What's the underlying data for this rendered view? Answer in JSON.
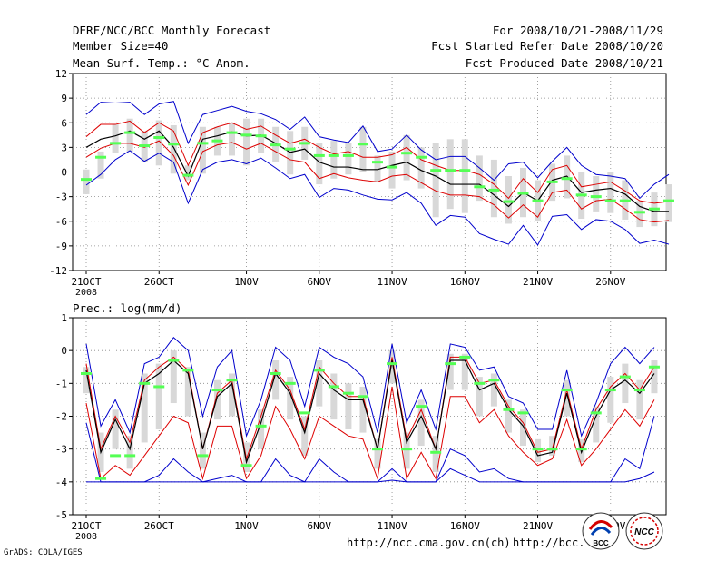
{
  "header": {
    "title": "DERF/NCC/BCC Monthly Forecast",
    "member_size": "Member Size=40",
    "variable": "Mean Surf. Temp.: °C Anom.",
    "period": "For 2008/10/21-2008/11/29",
    "started": "Fcst Started Refer Date 2008/10/20",
    "produced": "Fcst Produced Date 2008/10/21"
  },
  "footer": {
    "url1": "http://ncc.cma.gov.cn(ch)",
    "url2": "http://bcc.",
    "credit": "GrADS: COLA/IGES",
    "logo_bcc": "BCC",
    "logo_ncc": "NCC"
  },
  "colors": {
    "envelope": "#0000cc",
    "spread": "#dd0000",
    "mean": "#000000",
    "member": "#54ff54",
    "bar": "#d8d8d8",
    "grid": "#888888"
  },
  "chart_data": [
    {
      "type": "line",
      "title": "Mean Surf. Temp.: °C Anom.",
      "ylabel": "",
      "ylim": [
        -12,
        12
      ],
      "yticks": [
        12,
        9,
        6,
        3,
        0,
        -3,
        -6,
        -9,
        -12
      ],
      "xlabels": [
        {
          "day": 0,
          "text": "21OCT",
          "sub": "2008"
        },
        {
          "day": 5,
          "text": "26OCT"
        },
        {
          "day": 11,
          "text": "1NOV"
        },
        {
          "day": 16,
          "text": "6NOV"
        },
        {
          "day": 21,
          "text": "11NOV"
        },
        {
          "day": 26,
          "text": "16NOV"
        },
        {
          "day": 31,
          "text": "21NOV"
        },
        {
          "day": 36,
          "text": "26NOV"
        }
      ],
      "mean": [
        3,
        4,
        4.4,
        5,
        4,
        5,
        3,
        -0.5,
        4,
        4.4,
        4.9,
        4.4,
        4.5,
        3.5,
        2.4,
        2.8,
        1.2,
        0.6,
        0.6,
        0.3,
        0.3,
        0.8,
        1.2,
        0.2,
        -0.5,
        -1.5,
        -1.5,
        -1.5,
        -2.8,
        -4.2,
        -2.5,
        -3.5,
        -1,
        -0.5,
        -2.5,
        -2.2,
        -2,
        -2.7,
        -4.2,
        -4.8,
        -4.8
      ],
      "upper": [
        7,
        8.5,
        8.4,
        8.5,
        7,
        8.3,
        8.6,
        3.5,
        7,
        7.5,
        8,
        7.4,
        7.1,
        6.4,
        5.2,
        6.7,
        4.3,
        3.9,
        3.6,
        5.6,
        2.5,
        2.8,
        4.5,
        2.7,
        1.5,
        1.9,
        1.9,
        0.5,
        -1,
        1,
        1.2,
        -0.7,
        1.3,
        3,
        0.8,
        -0.3,
        -0.5,
        -0.8,
        -3.2,
        -1.5,
        -0.3
      ],
      "red_hi": [
        4.3,
        5.8,
        5.8,
        6.2,
        4.8,
        6,
        5,
        0.8,
        4.8,
        5.5,
        6,
        5.2,
        5.6,
        4.5,
        3.5,
        4,
        3,
        2.2,
        2.5,
        1.8,
        1.8,
        2.1,
        3,
        1.5,
        0.8,
        0.2,
        0.2,
        -0.3,
        -1.5,
        -3.2,
        -0.8,
        -2.5,
        0.3,
        0.8,
        -1.8,
        -1.5,
        -1.2,
        -2.3,
        -3.5,
        -3.8,
        -3.6
      ],
      "red_lo": [
        1.8,
        2.9,
        3.5,
        3.5,
        3,
        3.8,
        2,
        -1.6,
        2.5,
        3.3,
        3.6,
        2.8,
        3.5,
        2.5,
        1.5,
        1.2,
        -0.8,
        -0.2,
        -0.7,
        -1,
        -1.2,
        -0.5,
        -0.3,
        -1.3,
        -2.3,
        -2.8,
        -2.8,
        -3,
        -4,
        -5.6,
        -4,
        -5.5,
        -2.5,
        -2.2,
        -4.5,
        -3.5,
        -3.3,
        -4.5,
        -5.8,
        -6.1,
        -5.9
      ],
      "lower": [
        -1.6,
        -0.3,
        1.5,
        2.6,
        1.3,
        2.3,
        1.2,
        -3.8,
        0.3,
        1.2,
        1.5,
        1,
        1.7,
        0.5,
        -0.8,
        -0.3,
        -3.1,
        -2,
        -2.2,
        -2.8,
        -3.3,
        -3.4,
        -2.5,
        -3.8,
        -6.5,
        -5.3,
        -5.5,
        -7.5,
        -8.2,
        -8.8,
        -6.5,
        -8.9,
        -5.4,
        -5.2,
        -7,
        -5.8,
        -6,
        -7,
        -8.7,
        -8.3,
        -8.8
      ],
      "member_mark": [
        -0.9,
        1.8,
        3.5,
        4.8,
        3.2,
        4.2,
        3.4,
        -0.4,
        3.5,
        3.8,
        4.8,
        4.5,
        4.4,
        3.3,
        2.8,
        3.5,
        2,
        2,
        2,
        3.4,
        1.2,
        0.6,
        2.3,
        1.8,
        0.2,
        0.2,
        0.2,
        -1.8,
        -2.2,
        -3.6,
        -2.6,
        -3.5,
        -1.2,
        -0.8,
        -2.8,
        -3,
        -3.5,
        -3.5,
        -4.9,
        -4.5,
        -3.5
      ],
      "bar_top": [
        0.3,
        2.5,
        5.8,
        6.5,
        5,
        6.3,
        5.7,
        0.8,
        5.5,
        5.5,
        6,
        6.5,
        6.5,
        5.5,
        5,
        5.5,
        3.5,
        3.8,
        3.5,
        5.5,
        2,
        2.5,
        4.5,
        3,
        3.5,
        4,
        4,
        2,
        1.5,
        -0.5,
        0.5,
        -1,
        1,
        2,
        0,
        -0.5,
        0,
        -1,
        -3.5,
        -2.5,
        -1.5
      ],
      "bar_bot": [
        -2.7,
        -0.8,
        2.3,
        2.5,
        1.2,
        0.8,
        -0.2,
        -1,
        -0.2,
        2,
        2,
        0.8,
        2.3,
        1.2,
        -0.3,
        1.5,
        -1.5,
        -0.8,
        -0.3,
        0,
        -1.2,
        -2,
        -1,
        -2,
        -5.5,
        -4.5,
        -5,
        -3.5,
        -5.5,
        -6.3,
        -5.5,
        -6,
        -3.5,
        -3.2,
        -5.7,
        -4.8,
        -5,
        -5.8,
        -6.7,
        -6.6,
        -6.1
      ]
    },
    {
      "type": "line",
      "title": "Prec.: log(mm/d)",
      "ylabel": "",
      "ylim": [
        -5,
        1
      ],
      "yticks": [
        1,
        0,
        -1,
        -2,
        -3,
        -4,
        -5
      ],
      "xlabels": [
        {
          "day": 0,
          "text": "21OCT",
          "sub": "2008"
        },
        {
          "day": 5,
          "text": "26OCT"
        },
        {
          "day": 11,
          "text": "1NOV"
        },
        {
          "day": 16,
          "text": "6NOV"
        },
        {
          "day": 21,
          "text": "11NOV"
        },
        {
          "day": 26,
          "text": "16NOV"
        },
        {
          "day": 31,
          "text": "21NOV"
        },
        {
          "day": 36,
          "text": "26NOV"
        }
      ],
      "mean": [
        -0.6,
        -3.1,
        -2.1,
        -3,
        -1,
        -0.7,
        -0.3,
        -0.7,
        -3,
        -1.4,
        -1,
        -3.4,
        -2.2,
        -0.7,
        -1.3,
        -2.5,
        -0.7,
        -1.2,
        -1.5,
        -1.5,
        -3,
        -0.3,
        -2.8,
        -2,
        -3,
        -0.3,
        -0.3,
        -1.2,
        -1,
        -1.8,
        -2.3,
        -3.2,
        -3.1,
        -1.3,
        -3.1,
        -2,
        -1.2,
        -0.9,
        -1.3,
        -0.7
      ],
      "upper": [
        0.2,
        -2.3,
        -1.5,
        -2.5,
        -0.4,
        -0.2,
        0.4,
        0,
        -2,
        -0.5,
        0,
        -2.6,
        -1.5,
        0.1,
        -0.3,
        -1.7,
        0.1,
        -0.2,
        -0.4,
        -0.8,
        -2.5,
        0.2,
        -2.2,
        -1.2,
        -2.4,
        0.2,
        0.1,
        -0.6,
        -0.5,
        -1.4,
        -1.6,
        -2.4,
        -2.4,
        -0.6,
        -2.6,
        -1.6,
        -0.4,
        0.1,
        -0.4,
        0.1
      ],
      "red_hi": [
        -0.4,
        -3,
        -2,
        -2.8,
        -0.9,
        -0.5,
        -0.2,
        -0.6,
        -3,
        -1.3,
        -0.9,
        -3.3,
        -2,
        -0.6,
        -1.2,
        -2.4,
        -0.5,
        -1,
        -1.4,
        -1.4,
        -3,
        -0.2,
        -2.7,
        -1.8,
        -3,
        -0.2,
        -0.2,
        -1,
        -0.9,
        -1.7,
        -2.2,
        -3.1,
        -3,
        -1.2,
        -3,
        -1.8,
        -1.1,
        -0.7,
        -1.2,
        -0.5
      ],
      "red_lo": [
        -1.6,
        -3.9,
        -3.5,
        -3.8,
        -3.2,
        -2.6,
        -2,
        -2.2,
        -3.9,
        -2.3,
        -2.3,
        -3.9,
        -3.2,
        -1.7,
        -2.4,
        -3.3,
        -2,
        -2.3,
        -2.6,
        -2.7,
        -3.9,
        -1.1,
        -3.9,
        -3.1,
        -3.9,
        -1.4,
        -1.4,
        -2.2,
        -1.8,
        -2.6,
        -3.1,
        -3.5,
        -3.3,
        -2.1,
        -3.5,
        -3,
        -2.4,
        -1.8,
        -2.3,
        -1.5
      ],
      "lower": [
        -2.2,
        -4,
        -4,
        -4,
        -4,
        -3.8,
        -3.3,
        -3.7,
        -4,
        -3.9,
        -3.8,
        -4,
        -4,
        -3.3,
        -3.8,
        -4,
        -3.3,
        -3.7,
        -4,
        -4,
        -4,
        -3.6,
        -4,
        -4,
        -4,
        -3,
        -3.2,
        -3.7,
        -3.6,
        -3.9,
        -4,
        -4,
        -4,
        -4,
        -4,
        -4,
        -4,
        -3.3,
        -3.6,
        -2
      ],
      "min_line": [
        -4,
        -4,
        -4,
        -4,
        -4,
        -4,
        -4,
        -4,
        -4,
        -4,
        -4,
        -4,
        -4,
        -4,
        -4,
        -4,
        -4,
        -4,
        -4,
        -4,
        -4,
        -3.95,
        -4,
        -4,
        -4,
        -3.6,
        -3.8,
        -4,
        -4,
        -4,
        -4,
        -4,
        -4,
        -4,
        -4,
        -4,
        -4,
        -4,
        -3.9,
        -3.7
      ],
      "member_mark": [
        -0.7,
        -3.9,
        -3.2,
        -3.2,
        -1,
        -1.1,
        -0.3,
        -0.6,
        -3.2,
        -1.2,
        -0.9,
        -3.5,
        -2.3,
        -0.7,
        -1,
        -1.9,
        -0.6,
        -1.1,
        -1.3,
        -1.4,
        -3,
        -0.4,
        -3,
        -1.7,
        -3.1,
        -0.4,
        -0.2,
        -1,
        -0.9,
        -1.8,
        -1.9,
        -3,
        -3,
        -1.2,
        -3,
        -1.9,
        -1.2,
        -0.8,
        -1.2,
        -0.5
      ],
      "bar_top": [
        -0.5,
        -2.5,
        -1.8,
        -2.6,
        -0.7,
        -0.4,
        0,
        -0.5,
        -2.5,
        -0.9,
        -0.7,
        -2.8,
        -1.8,
        -0.3,
        -0.8,
        -2,
        -0.3,
        -0.7,
        -1,
        -1.1,
        -2.7,
        0,
        -2.5,
        -1.5,
        -2.6,
        -0.1,
        -0.1,
        -0.8,
        -0.7,
        -1.5,
        -1.8,
        -2.7,
        -2.6,
        -0.9,
        -2.7,
        -1.7,
        -0.8,
        -0.4,
        -0.9,
        -0.3
      ],
      "bar_bot": [
        -1.3,
        -3.7,
        -3,
        -3.6,
        -2.8,
        -2.4,
        -1.6,
        -2,
        -3.6,
        -2.1,
        -2,
        -3.7,
        -3,
        -1.5,
        -2.1,
        -3.2,
        -1.7,
        -2.1,
        -2.4,
        -2.5,
        -3.6,
        -1,
        -3.6,
        -2.9,
        -3.7,
        -1.2,
        -1.2,
        -2,
        -1.7,
        -2.5,
        -2.9,
        -3.4,
        -3.2,
        -2,
        -3.4,
        -2.8,
        -2.2,
        -1.6,
        -2.1,
        -1.3
      ]
    }
  ]
}
